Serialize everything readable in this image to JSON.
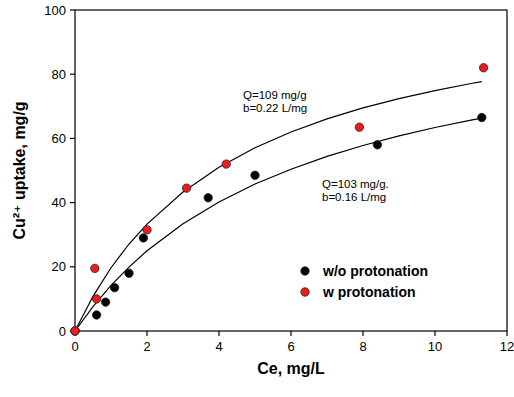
{
  "chart_data": {
    "type": "scatter",
    "xlabel": "Ce, mg/L",
    "ylabel": "Cu²⁺ uptake, mg/g",
    "xlim": [
      0,
      12
    ],
    "xticks": [
      0,
      2,
      4,
      6,
      8,
      10,
      12
    ],
    "ylim": [
      0,
      100
    ],
    "yticks": [
      0,
      20,
      40,
      60,
      80,
      100
    ],
    "grid": false,
    "legend": "lower right",
    "annotations": [
      {
        "lines": [
          "Q=109 mg/g",
          "b=0.22 L/mg"
        ]
      },
      {
        "lines": [
          "Q=103 mg/g.",
          "b=0.16 L/mg"
        ]
      }
    ],
    "series": [
      {
        "name": "w/o protonation",
        "type": "scatter",
        "marker": "circle",
        "color": "#000000",
        "x": [
          0,
          0.6,
          0.85,
          1.1,
          1.5,
          1.9,
          3.7,
          5.0,
          8.4,
          11.3
        ],
        "values": [
          0,
          5,
          9,
          13.5,
          18,
          29,
          41.5,
          48.5,
          58,
          66.5
        ]
      },
      {
        "name": "w protonation",
        "type": "scatter",
        "marker": "circle",
        "color": "#ee1c1c",
        "x": [
          0,
          0.55,
          0.6,
          2.0,
          3.1,
          4.2,
          7.9,
          11.35
        ],
        "values": [
          0,
          19.5,
          10,
          31.5,
          44.5,
          52,
          63.5,
          82
        ]
      },
      {
        "type": "line",
        "line_style": "solid",
        "color": "#000000",
        "x": [
          0,
          0.5,
          1,
          1.5,
          2,
          3,
          4,
          5,
          6,
          7,
          8,
          9,
          10,
          11,
          11.3
        ],
        "values": [
          0,
          10.8,
          19.7,
          27.1,
          33.3,
          43.3,
          51.0,
          57.1,
          62.0,
          66.1,
          69.5,
          72.4,
          74.9,
          77.1,
          77.7
        ]
      },
      {
        "type": "line",
        "line_style": "solid",
        "color": "#000000",
        "x": [
          0,
          0.5,
          1,
          1.5,
          2,
          3,
          4,
          5,
          6,
          7,
          8,
          9,
          10,
          11,
          11.3
        ],
        "values": [
          0,
          7.6,
          14.2,
          19.9,
          25.0,
          33.4,
          40.2,
          45.8,
          50.4,
          54.4,
          57.8,
          60.8,
          63.4,
          65.7,
          66.3
        ]
      }
    ]
  }
}
